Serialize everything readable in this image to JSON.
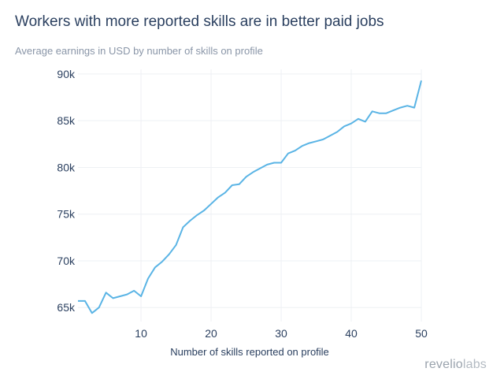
{
  "title": "Workers with more reported skills are in better paid jobs",
  "subtitle": "Average earnings in USD by number of skills on profile",
  "brand": {
    "part1": "revelio",
    "part2": "labs"
  },
  "colors": {
    "line": "#5ab4e5",
    "grid": "#eef0f4",
    "text": "#2a3f5f"
  },
  "chart_data": {
    "type": "line",
    "xlabel": "Number of skills reported on profile",
    "ylabel": "",
    "xlim": [
      1,
      50
    ],
    "ylim": [
      63500,
      90500
    ],
    "x_ticks": [
      10,
      20,
      30,
      40,
      50
    ],
    "y_ticks": [
      65000,
      70000,
      75000,
      80000,
      85000,
      90000
    ],
    "y_tick_labels": [
      "65k",
      "70k",
      "75k",
      "80k",
      "85k",
      "90k"
    ],
    "grid": true,
    "series": [
      {
        "x": [
          1,
          2,
          3,
          4,
          5,
          6,
          7,
          8,
          9,
          10,
          11,
          12,
          13,
          14,
          15,
          16,
          17,
          18,
          19,
          20,
          21,
          22,
          23,
          24,
          25,
          26,
          27,
          28,
          29,
          30,
          31,
          32,
          33,
          34,
          35,
          36,
          37,
          38,
          39,
          40,
          41,
          42,
          43,
          44,
          45,
          46,
          47,
          48,
          49,
          50
        ],
        "values": [
          65700,
          65700,
          64400,
          65000,
          66600,
          66000,
          66200,
          66400,
          66800,
          66200,
          68100,
          69300,
          69900,
          70700,
          71700,
          73600,
          74300,
          74900,
          75400,
          76100,
          76800,
          77300,
          78100,
          78200,
          79000,
          79500,
          79900,
          80300,
          80500,
          80500,
          81500,
          81800,
          82300,
          82600,
          82800,
          83000,
          83400,
          83800,
          84400,
          84700,
          85200,
          84900,
          86000,
          85800,
          85800,
          86100,
          86400,
          86600,
          86400,
          89300
        ]
      }
    ]
  }
}
